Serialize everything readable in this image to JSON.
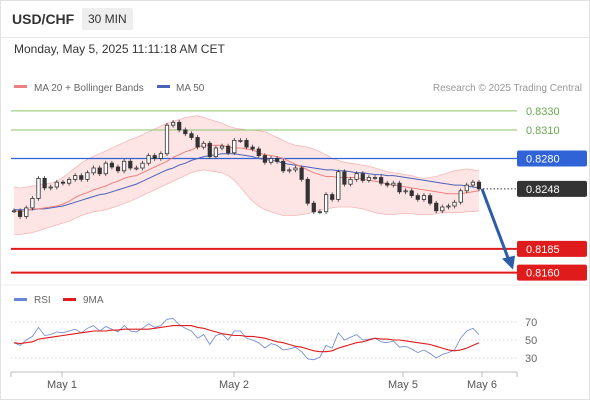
{
  "header": {
    "symbol": "USD/CHF",
    "timeframe": "30 MIN",
    "timestamp": "Monday, May 5, 2025 11:11:18 AM CET"
  },
  "legend": {
    "ma20": "MA 20 + Bollinger Bands",
    "ma50": "MA 50",
    "credit": "Research © 2025 Trading Central"
  },
  "colors": {
    "ma20": "#f08080",
    "bands": "#fbd3d3",
    "ma50": "#4a62b8",
    "candle": "#333333",
    "resistance": "#8fc26e",
    "pivot": "#2f63d6",
    "support": "#e01b1b",
    "arrow": "#2d5da8",
    "price": "#333333",
    "rsi": "#6a86d6",
    "rsi_ma": "#e01b1b"
  },
  "chart_data": [
    {
      "type": "candlestick",
      "x_ticks": [
        "May 1",
        "May 2",
        "May 5",
        "May 6"
      ],
      "price_range": [
        0.8148,
        0.8352
      ],
      "levels": [
        {
          "value": 0.833,
          "label": "0.8330",
          "role": "resistance"
        },
        {
          "value": 0.831,
          "label": "0.8310",
          "role": "resistance"
        },
        {
          "value": 0.828,
          "label": "0.8280",
          "role": "pivot"
        },
        {
          "value": 0.8185,
          "label": "0.8185",
          "role": "support"
        },
        {
          "value": 0.816,
          "label": "0.8160",
          "role": "support"
        }
      ],
      "current_price": {
        "value": 0.8248,
        "label": "0.8248"
      },
      "forecast_target": 0.816,
      "closes": [
        0.8225,
        0.8219,
        0.8228,
        0.8238,
        0.8259,
        0.8249,
        0.825,
        0.8255,
        0.8254,
        0.8258,
        0.8262,
        0.8258,
        0.8265,
        0.827,
        0.8264,
        0.8275,
        0.8271,
        0.8267,
        0.8277,
        0.827,
        0.827,
        0.8275,
        0.8283,
        0.828,
        0.8285,
        0.8315,
        0.8318,
        0.831,
        0.8306,
        0.8302,
        0.8292,
        0.8296,
        0.8282,
        0.8291,
        0.8293,
        0.8286,
        0.8299,
        0.8299,
        0.8292,
        0.829,
        0.8283,
        0.8276,
        0.828,
        0.8277,
        0.8267,
        0.8268,
        0.827,
        0.8258,
        0.8233,
        0.8224,
        0.8224,
        0.8242,
        0.8237,
        0.8266,
        0.8253,
        0.8258,
        0.8264,
        0.8257,
        0.826,
        0.826,
        0.8254,
        0.8252,
        0.8254,
        0.8245,
        0.8246,
        0.8241,
        0.8237,
        0.8241,
        0.8233,
        0.8225,
        0.8229,
        0.823,
        0.8234,
        0.8246,
        0.8252,
        0.8255,
        0.8248
      ],
      "ma20": [
        0.8225,
        0.8224,
        0.8225,
        0.8227,
        0.8227,
        0.8228,
        0.8229,
        0.823,
        0.8232,
        0.8235,
        0.8239,
        0.8242,
        0.8244,
        0.8247,
        0.8249,
        0.8251,
        0.8254,
        0.8256,
        0.8259,
        0.8261,
        0.8262,
        0.8265,
        0.8268,
        0.8271,
        0.8274,
        0.8277,
        0.8281,
        0.8284,
        0.8287,
        0.8289,
        0.8292,
        0.8294,
        0.8294,
        0.8294,
        0.8294,
        0.8292,
        0.8291,
        0.8291,
        0.829,
        0.8289,
        0.8286,
        0.8284,
        0.8283,
        0.8282,
        0.828,
        0.8277,
        0.8274,
        0.8271,
        0.8268,
        0.8265,
        0.8263,
        0.8261,
        0.8261,
        0.826,
        0.826,
        0.826,
        0.826,
        0.8258,
        0.8257,
        0.8256,
        0.8255,
        0.8253,
        0.8252,
        0.8251,
        0.825,
        0.8249,
        0.8248,
        0.8247,
        0.8246,
        0.8245,
        0.8244,
        0.8243,
        0.8243,
        0.8243,
        0.8244,
        0.8245,
        0.8246
      ],
      "ma50": [
        0.8226,
        0.8226,
        0.8226,
        0.8226,
        0.8227,
        0.8227,
        0.8228,
        0.8229,
        0.823,
        0.8232,
        0.8234,
        0.8236,
        0.8238,
        0.824,
        0.8242,
        0.8243,
        0.8245,
        0.8247,
        0.8249,
        0.8251,
        0.8253,
        0.8256,
        0.8259,
        0.8262,
        0.8265,
        0.8268,
        0.827,
        0.8273,
        0.8275,
        0.8278,
        0.828,
        0.8282,
        0.8283,
        0.8284,
        0.8285,
        0.8285,
        0.8285,
        0.8284,
        0.8283,
        0.8282,
        0.828,
        0.8279,
        0.8278,
        0.8277,
        0.8275,
        0.8274,
        0.8273,
        0.8272,
        0.8271,
        0.827,
        0.8269,
        0.8268,
        0.8268,
        0.8267,
        0.8267,
        0.8266,
        0.8265,
        0.8265,
        0.8264,
        0.8263,
        0.8263,
        0.8262,
        0.8262,
        0.8261,
        0.826,
        0.8259,
        0.8258,
        0.8257,
        0.8256,
        0.8255,
        0.8254,
        0.8253,
        0.8252,
        0.8252,
        0.8251,
        0.825,
        0.8249
      ],
      "bands_upper": [
        0.825,
        0.8249,
        0.825,
        0.8251,
        0.8252,
        0.8253,
        0.8254,
        0.8256,
        0.826,
        0.8265,
        0.827,
        0.8275,
        0.8279,
        0.8282,
        0.8285,
        0.8288,
        0.8291,
        0.8294,
        0.8297,
        0.83,
        0.8302,
        0.8305,
        0.8308,
        0.8311,
        0.8314,
        0.8317,
        0.8319,
        0.8321,
        0.8323,
        0.8324,
        0.8325,
        0.8323,
        0.8321,
        0.8319,
        0.8317,
        0.8314,
        0.8312,
        0.8311,
        0.831,
        0.831,
        0.8309,
        0.8308,
        0.8305,
        0.8302,
        0.8299,
        0.8296,
        0.8294,
        0.8293,
        0.8292,
        0.829,
        0.8287,
        0.8284,
        0.828,
        0.8278,
        0.8276,
        0.8275,
        0.8274,
        0.8273,
        0.8272,
        0.827,
        0.8268,
        0.8266,
        0.8265,
        0.8264,
        0.8263,
        0.8262,
        0.826,
        0.8259,
        0.826,
        0.8261,
        0.8263,
        0.8265,
        0.8267,
        0.8268,
        0.8269,
        0.8268,
        0.8267
      ],
      "bands_lower": [
        0.82,
        0.82,
        0.8201,
        0.8202,
        0.8204,
        0.8206,
        0.8208,
        0.821,
        0.8212,
        0.8214,
        0.8217,
        0.822,
        0.8222,
        0.8224,
        0.8225,
        0.8226,
        0.8228,
        0.823,
        0.8233,
        0.8235,
        0.8238,
        0.8241,
        0.8244,
        0.8247,
        0.825,
        0.8253,
        0.8256,
        0.8259,
        0.8262,
        0.8265,
        0.8267,
        0.8268,
        0.8267,
        0.8266,
        0.8265,
        0.8262,
        0.8257,
        0.825,
        0.8242,
        0.8235,
        0.823,
        0.8226,
        0.8224,
        0.8222,
        0.822,
        0.822,
        0.822,
        0.8221,
        0.8222,
        0.8224,
        0.8226,
        0.8227,
        0.8228,
        0.8229,
        0.8229,
        0.8229,
        0.8228,
        0.8227,
        0.8225,
        0.8223,
        0.8222,
        0.8221,
        0.8221,
        0.8222,
        0.8222,
        0.8222,
        0.8221,
        0.8221,
        0.8221,
        0.8222,
        0.8223,
        0.8223,
        0.8223,
        0.8223,
        0.8224,
        0.8224,
        0.8225
      ]
    },
    {
      "type": "line",
      "legend": [
        "RSI",
        "9MA"
      ],
      "y_ticks": [
        70,
        50,
        30
      ],
      "ylim": [
        20,
        80
      ],
      "series": [
        {
          "name": "RSI",
          "values": [
            47,
            44,
            50,
            54,
            64,
            55,
            56,
            59,
            58,
            60,
            62,
            58,
            63,
            66,
            60,
            65,
            62,
            59,
            66,
            60,
            59,
            63,
            68,
            64,
            66,
            73,
            74,
            67,
            63,
            60,
            52,
            56,
            45,
            55,
            57,
            50,
            60,
            60,
            52,
            50,
            47,
            41,
            46,
            44,
            39,
            40,
            42,
            37,
            29,
            28,
            31,
            44,
            41,
            58,
            50,
            53,
            56,
            50,
            51,
            52,
            48,
            47,
            49,
            42,
            43,
            40,
            36,
            39,
            35,
            30,
            34,
            36,
            39,
            52,
            60,
            63,
            56
          ]
        },
        {
          "name": "9MA",
          "values": [
            47,
            46,
            47,
            48,
            51,
            52,
            53,
            54,
            55,
            56,
            57,
            58,
            59,
            60,
            60,
            60,
            61,
            61,
            62,
            62,
            62,
            62,
            62,
            63,
            64,
            65,
            66,
            66,
            66,
            66,
            64,
            63,
            61,
            59,
            57,
            56,
            55,
            55,
            54,
            54,
            53,
            52,
            50,
            48,
            47,
            45,
            43,
            42,
            40,
            38,
            37,
            37,
            38,
            41,
            43,
            45,
            47,
            48,
            50,
            52,
            51,
            51,
            50,
            50,
            49,
            48,
            47,
            46,
            45,
            43,
            41,
            39,
            38,
            39,
            41,
            44,
            47
          ]
        }
      ]
    }
  ]
}
